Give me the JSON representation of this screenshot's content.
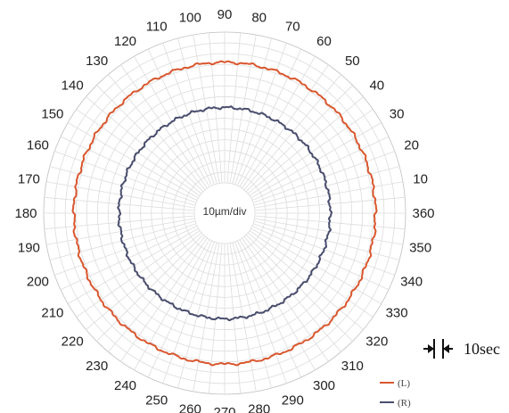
{
  "chart_data": {
    "type": "polar-line",
    "angle_ticks_deg": [
      0,
      10,
      20,
      30,
      40,
      50,
      60,
      70,
      80,
      90,
      100,
      110,
      120,
      130,
      140,
      150,
      160,
      170,
      180,
      190,
      200,
      210,
      220,
      230,
      240,
      250,
      260,
      270,
      280,
      290,
      300,
      310,
      320,
      330,
      340,
      350
    ],
    "angle_tick_labels": [
      "360",
      "10",
      "20",
      "30",
      "40",
      "50",
      "60",
      "70",
      "80",
      "90",
      "100",
      "110",
      "120",
      "130",
      "140",
      "150",
      "160",
      "170",
      "180",
      "190",
      "200",
      "210",
      "220",
      "230",
      "240",
      "250",
      "260",
      "270",
      "280",
      "290",
      "300",
      "310",
      "320",
      "330",
      "340",
      "350"
    ],
    "center_label": "10µm/div",
    "radial_divisions": 14,
    "grid": true,
    "series": [
      {
        "name": "(L)",
        "color": "#d9572e",
        "radius_div": 11.2,
        "ripple_div": 0.08
      },
      {
        "name": "(R)",
        "color": "#4a4e6e",
        "radius_div": 7.0,
        "ripple_div": 0.08
      }
    ],
    "scale_annotation": "10sec",
    "legend_position": "bottom-right"
  }
}
